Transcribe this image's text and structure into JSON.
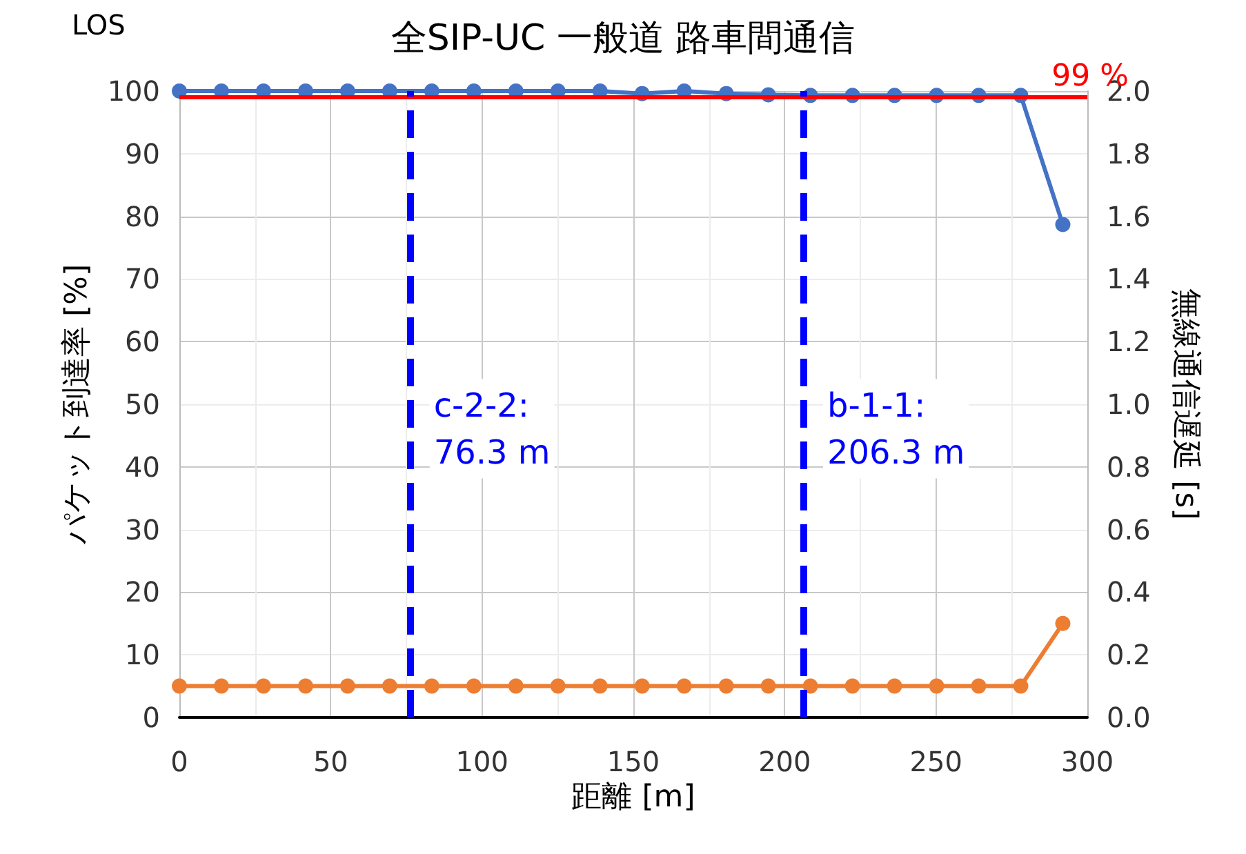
{
  "chart_data": {
    "type": "line",
    "title": "全SIP-UC 一般道 路車間通信",
    "xlabel": "距離 [m]",
    "ylabel": "パケット到達率 [%]",
    "y2label": "無線通信遅延 [s]",
    "x": [
      0,
      13.9,
      27.8,
      41.7,
      55.6,
      69.5,
      83.4,
      97.3,
      111.2,
      125.1,
      139,
      152.9,
      166.8,
      180.7,
      194.6,
      208.5,
      222.4,
      236.3,
      250.2,
      264.1,
      278,
      291.9
    ],
    "series": [
      {
        "color": "#4472c4",
        "values": [
          100,
          100,
          100,
          100,
          100,
          100,
          100,
          100,
          100,
          100,
          100,
          99.6,
          100,
          99.6,
          99.4,
          99.3,
          99.3,
          99.3,
          99.3,
          99.3,
          99.3,
          78.7
        ]
      },
      {
        "color": "#ed7d31",
        "axis": "y2",
        "values": [
          0.1,
          0.1,
          0.1,
          0.1,
          0.1,
          0.1,
          0.1,
          0.1,
          0.1,
          0.1,
          0.1,
          0.1,
          0.1,
          0.1,
          0.1,
          0.1,
          0.1,
          0.1,
          0.1,
          0.1,
          0.1,
          0.3
        ]
      }
    ],
    "xlim": [
      0,
      300
    ],
    "xticks": [
      0,
      50,
      100,
      150,
      200,
      250,
      300
    ],
    "ylim": [
      0,
      100
    ],
    "yticks": [
      0,
      10,
      20,
      30,
      40,
      50,
      60,
      70,
      80,
      90,
      100
    ],
    "y2lim": [
      0,
      2
    ],
    "y2ticks": [
      {
        "value": 0,
        "label": "0.0"
      },
      {
        "value": 0.2,
        "label": "0.2"
      },
      {
        "value": 0.4,
        "label": "0.4"
      },
      {
        "value": 0.6,
        "label": "0.6"
      },
      {
        "value": 0.8,
        "label": "0.8"
      },
      {
        "value": 1,
        "label": "1.0"
      },
      {
        "value": 1.2,
        "label": "1.2"
      },
      {
        "value": 1.4,
        "label": "1.4"
      },
      {
        "value": 1.6,
        "label": "1.6"
      },
      {
        "value": 1.8,
        "label": "1.8"
      },
      {
        "value": 2,
        "label": "2.0"
      }
    ],
    "ref_lines": [
      {
        "axis": "y",
        "value": 99,
        "label": "99 %",
        "color": "#ff0000",
        "line_style": "solid"
      },
      {
        "axis": "x",
        "value": 76.3,
        "label": "c-2-2:\n76.3 m",
        "color": "#0000ff",
        "line_style": "dashed"
      },
      {
        "axis": "x",
        "value": 206.3,
        "label": "b-1-1:\n206.3 m",
        "color": "#0000ff",
        "line_style": "dashed"
      }
    ],
    "annotations": [
      "LOS"
    ],
    "grid": true,
    "legend": false,
    "marker": "circle",
    "line_style": "solid"
  }
}
